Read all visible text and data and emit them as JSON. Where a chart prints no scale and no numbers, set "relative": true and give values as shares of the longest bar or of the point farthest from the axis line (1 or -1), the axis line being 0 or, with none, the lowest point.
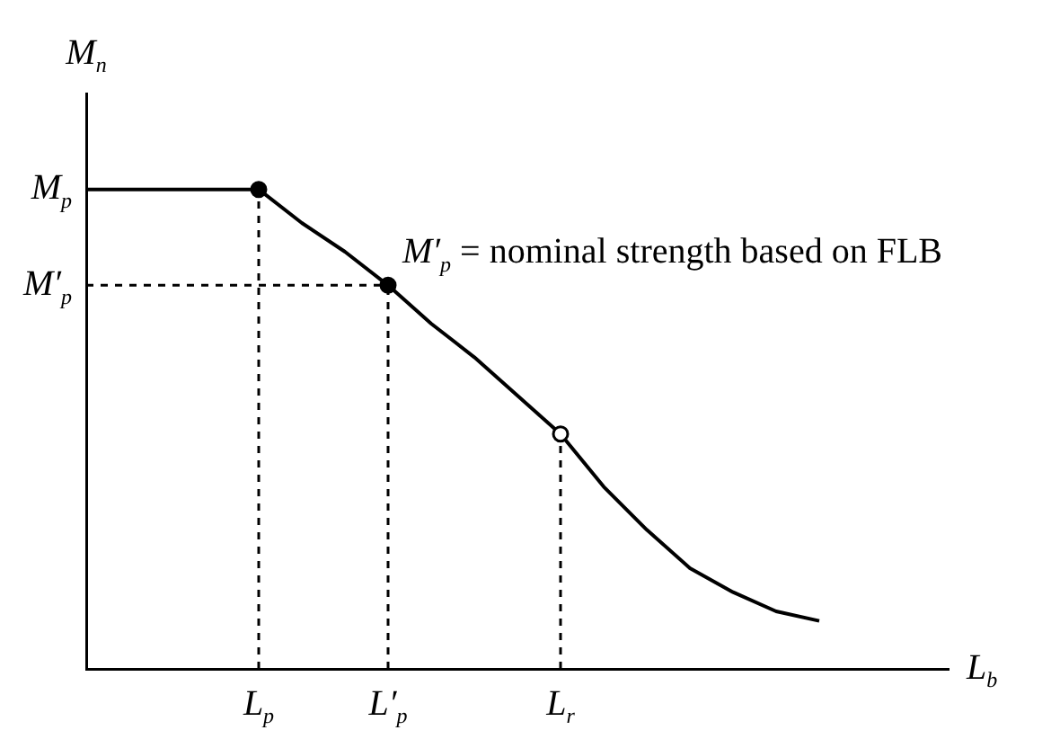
{
  "chart_data": {
    "type": "line",
    "relative": true,
    "xlabel": "L$_{b}$",
    "ylabel": "M$_{n}$",
    "categories": [
      null,
      null,
      null,
      null,
      "L$_{p}$",
      null,
      null,
      "L′$_{p}$",
      null,
      null,
      null,
      "L$_{r}$",
      null,
      null,
      null,
      null,
      null,
      null,
      null,
      null,
      null
    ],
    "series": [
      {
        "color": "#000000",
        "values": [
          1,
          1,
          1,
          1,
          1,
          0.93,
          0.87,
          0.8,
          0.72,
          0.65,
          0.57,
          0.49,
          0.38,
          0.29,
          0.21,
          0.16,
          0.12,
          0.1,
          null,
          null,
          null
        ]
      }
    ],
    "ref_lines": [
      {
        "axis": "y",
        "value": 0.8,
        "label": "M′$_{p}$",
        "line_style": "dashed"
      },
      {
        "axis": "x",
        "value": "L$_{p}$",
        "line_style": "dashed"
      },
      {
        "axis": "x",
        "value": "L′$_{p}$",
        "line_style": "dashed"
      },
      {
        "axis": "x",
        "value": "L$_{r}$",
        "line_style": "dashed"
      }
    ],
    "annotations": [
      "M$_{p}$",
      {
        "text": "M′$_{p}$ = nominal strength based on FLB",
        "x": "L′$_{p}$",
        "y": 0.8
      }
    ]
  }
}
